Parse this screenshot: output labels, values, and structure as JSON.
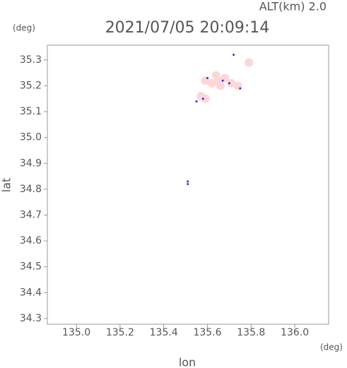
{
  "chart_data": {
    "type": "scatter",
    "title": "2021/07/05 20:09:14",
    "subtitle": "ALT(km) 2.0",
    "x_label": "lon",
    "y_label": "lat",
    "x_unit": "(deg)",
    "y_unit": "(deg)",
    "xlim": [
      134.867,
      136.155
    ],
    "ylim": [
      34.278,
      35.357
    ],
    "xticks": [
      {
        "value": 135,
        "label": "135.0"
      },
      135.2,
      135.4,
      135.6,
      135.8,
      {
        "value": 136,
        "label": "136.0"
      }
    ],
    "yticks": [
      34.3,
      34.4,
      34.5,
      34.6,
      34.7,
      34.8,
      34.9,
      {
        "value": 35,
        "label": "35.0"
      },
      35.1,
      35.2,
      35.3
    ],
    "series": [
      {
        "color": "#fcd6d8",
        "size": 12,
        "x": [
          135.65,
          135.68,
          135.62,
          135.71,
          135.66,
          135.74,
          135.59,
          135.64,
          135.59,
          135.57,
          135.79
        ],
        "values": [
          35.22,
          35.23,
          35.21,
          35.21,
          35.2,
          35.2,
          35.22,
          35.24,
          35.15,
          35.16,
          35.29
        ]
      },
      {
        "color": "#3030d0",
        "size": 3,
        "x": [
          135.72,
          135.6,
          135.75,
          135.55,
          135.51,
          135.51,
          135.67,
          135.7,
          135.58
        ],
        "values": [
          35.32,
          35.23,
          35.19,
          35.14,
          34.82,
          34.83,
          35.22,
          35.21,
          35.15
        ]
      }
    ]
  }
}
